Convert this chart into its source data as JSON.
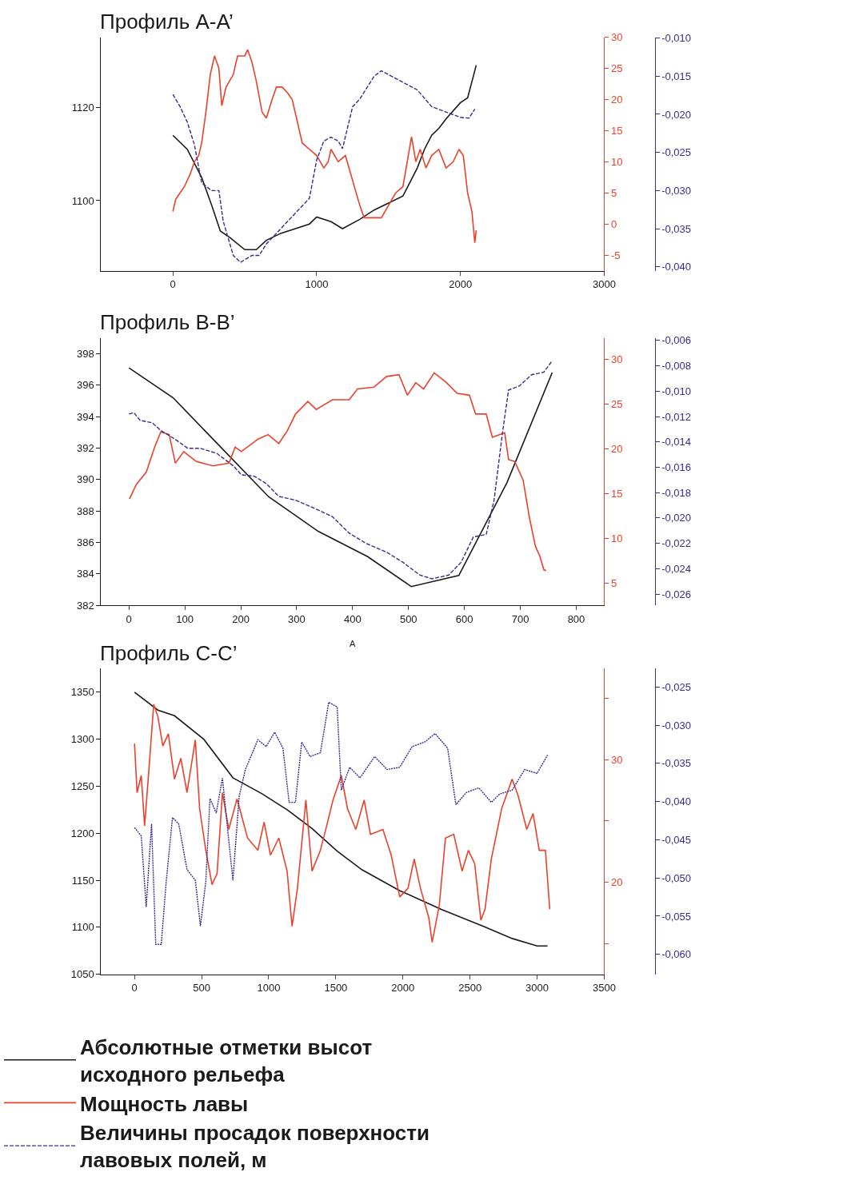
{
  "chart_data": [
    {
      "type": "line",
      "title": "Профиль A-A’",
      "legend": "bottom",
      "xlim": [
        -500,
        3000
      ],
      "xticks": [
        0,
        1000,
        2000,
        3000
      ],
      "ylim": [
        1085,
        1135
      ],
      "yticks": [
        1100,
        1120
      ],
      "y2lim": [
        -7.5,
        30
      ],
      "y2ticks": [
        -5,
        0,
        5,
        10,
        15,
        20,
        25,
        30
      ],
      "y3lim": [
        -0.0405,
        -0.0099
      ],
      "y3ticks": [
        {
          "value": -0.01,
          "label": "-0,010"
        },
        {
          "value": -0.015,
          "label": "-0,015"
        },
        {
          "value": -0.02,
          "label": "-0,020"
        },
        {
          "value": -0.025,
          "label": "-0,025"
        },
        {
          "value": -0.03,
          "label": "-0,030"
        },
        {
          "value": -0.035,
          "label": "-0,035"
        },
        {
          "value": -0.04,
          "label": "-0,040"
        }
      ],
      "series": [
        {
          "name": "Абсолютные отметки высот исходного рельефа",
          "color": "#1a1a1a",
          "line_style": "solid",
          "x": [
            0,
            100,
            200,
            270,
            330,
            400,
            500,
            580,
            650,
            750,
            950,
            1000,
            1100,
            1180,
            1300,
            1400,
            1500,
            1600,
            1700,
            1750,
            1800,
            1850,
            1900,
            2000,
            2050,
            2110
          ],
          "values": [
            1114,
            1111,
            1105,
            1099,
            1093.5,
            1092,
            1089.5,
            1089.5,
            1091.5,
            1093,
            1095,
            1096.5,
            1095.5,
            1094,
            1096,
            1098,
            1099.5,
            1101,
            1107,
            1111,
            1114,
            1115.5,
            1117.5,
            1121,
            1122,
            1129
          ]
        },
        {
          "name": "Мощность лавы",
          "color": "#e8412c",
          "line_style": "solid",
          "axis": "y2",
          "x": [
            0,
            20,
            50,
            80,
            120,
            150,
            180,
            200,
            230,
            260,
            290,
            320,
            340,
            370,
            420,
            450,
            500,
            520,
            550,
            580,
            620,
            650,
            690,
            720,
            760,
            800,
            830,
            870,
            900,
            950,
            1000,
            1050,
            1080,
            1100,
            1150,
            1200,
            1250,
            1300,
            1330,
            1370,
            1400,
            1450,
            1500,
            1550,
            1600,
            1630,
            1660,
            1690,
            1720,
            1760,
            1800,
            1850,
            1900,
            1950,
            1990,
            2020,
            2050,
            2080,
            2100,
            2110
          ],
          "values": [
            2,
            4,
            5,
            6,
            8,
            10,
            11,
            13,
            18,
            24,
            27,
            25,
            19,
            22,
            24,
            27,
            27,
            28,
            26,
            23,
            18,
            17,
            20,
            22,
            22,
            21,
            20,
            16,
            13,
            12,
            11,
            9,
            10,
            12,
            10,
            11,
            7,
            3,
            1,
            1,
            1,
            1,
            3,
            5,
            6,
            10,
            14,
            10,
            12,
            9,
            11,
            12,
            9,
            10,
            12,
            11,
            5,
            2,
            -3,
            -1
          ]
        },
        {
          "name": "Величины просадок поверхности лавовых полей, м",
          "color": "#3d2a8f",
          "line_style": "dashed",
          "axis": "y3",
          "x": [
            0,
            50,
            100,
            150,
            200,
            270,
            320,
            350,
            420,
            470,
            550,
            600,
            650,
            700,
            800,
            900,
            950,
            1000,
            1050,
            1100,
            1150,
            1180,
            1250,
            1300,
            1350,
            1400,
            1450,
            1500,
            1600,
            1700,
            1800,
            1900,
            2000,
            2060,
            2100
          ],
          "values": [
            -0.0174,
            -0.019,
            -0.021,
            -0.024,
            -0.029,
            -0.03,
            -0.03,
            -0.034,
            -0.0385,
            -0.0394,
            -0.0385,
            -0.0385,
            -0.037,
            -0.036,
            -0.034,
            -0.032,
            -0.031,
            -0.026,
            -0.0235,
            -0.023,
            -0.0235,
            -0.0245,
            -0.019,
            -0.018,
            -0.0165,
            -0.015,
            -0.0143,
            -0.0148,
            -0.0158,
            -0.0168,
            -0.019,
            -0.0197,
            -0.0204,
            -0.0205,
            -0.0193
          ]
        }
      ]
    },
    {
      "type": "line",
      "title": "Профиль B-B’",
      "annotations": [
        "A"
      ],
      "xlim": [
        -50,
        850
      ],
      "xticks": [
        0,
        100,
        200,
        300,
        400,
        500,
        600,
        700,
        800
      ],
      "ylim": [
        382,
        399
      ],
      "yticks": [
        382,
        384,
        386,
        388,
        390,
        392,
        394,
        396,
        398
      ],
      "y2lim": [
        2.5,
        32.4
      ],
      "y2ticks": [
        5,
        10,
        15,
        20,
        25,
        30
      ],
      "y3lim": [
        -0.0269,
        -0.0058
      ],
      "y3ticks": [
        {
          "value": -0.006,
          "label": "-0,006"
        },
        {
          "value": -0.008,
          "label": "-0,008"
        },
        {
          "value": -0.01,
          "label": "-0,010"
        },
        {
          "value": -0.012,
          "label": "-0,012"
        },
        {
          "value": -0.014,
          "label": "-0,014"
        },
        {
          "value": -0.016,
          "label": "-0,016"
        },
        {
          "value": -0.018,
          "label": "-0,018"
        },
        {
          "value": -0.02,
          "label": "-0,020"
        },
        {
          "value": -0.022,
          "label": "-0,022"
        },
        {
          "value": -0.024,
          "label": "-0,024"
        },
        {
          "value": -0.026,
          "label": "-0,026"
        }
      ],
      "series": [
        {
          "color": "#1a1a1a",
          "line_style": "solid",
          "x": [
            0,
            79,
            250,
            339,
            427,
            505,
            590,
            676,
            757
          ],
          "values": [
            397.1,
            395.2,
            388.9,
            386.7,
            385.1,
            383.2,
            383.9,
            389.8,
            396.8
          ]
        },
        {
          "color": "#e8412c",
          "line_style": "solid",
          "axis": "y2",
          "x": [
            1,
            13,
            31,
            46,
            57,
            72,
            83,
            98,
            120,
            150,
            179,
            190,
            201,
            231,
            249,
            268,
            283,
            298,
            320,
            335,
            364,
            394,
            409,
            438,
            461,
            483,
            498,
            513,
            527,
            546,
            568,
            587,
            609,
            620,
            639,
            650,
            672,
            679,
            690,
            705,
            716,
            727,
            735,
            742,
            746
          ],
          "values": [
            14.4,
            16,
            17.4,
            20.2,
            21.9,
            21.6,
            18.4,
            19.7,
            18.6,
            18.1,
            18.4,
            20.2,
            19.7,
            21.1,
            21.6,
            20.6,
            22,
            23.9,
            25.3,
            24.4,
            25.5,
            25.5,
            26.7,
            26.9,
            28.1,
            28.3,
            26,
            27.4,
            26.7,
            28.5,
            27.4,
            26.2,
            26,
            23.9,
            23.9,
            21.3,
            21.8,
            18.8,
            18.6,
            16.5,
            12.4,
            9.1,
            8,
            6.5,
            6.4
          ]
        },
        {
          "color": "#3d2a8f",
          "line_style": "dashed",
          "axis": "y3",
          "x": [
            0,
            9,
            20,
            42,
            57,
            83,
            105,
            127,
            157,
            187,
            201,
            224,
            246,
            268,
            298,
            335,
            364,
            394,
            424,
            461,
            490,
            520,
            542,
            572,
            594,
            616,
            639,
            653,
            668,
            679,
            698,
            720,
            742,
            757
          ],
          "values": [
            -0.0118,
            -0.0117,
            -0.0123,
            -0.0125,
            -0.0131,
            -0.0138,
            -0.0145,
            -0.0145,
            -0.0149,
            -0.0159,
            -0.0166,
            -0.0167,
            -0.0173,
            -0.0183,
            -0.0186,
            -0.0193,
            -0.0199,
            -0.0212,
            -0.022,
            -0.0227,
            -0.0235,
            -0.0245,
            -0.0248,
            -0.0245,
            -0.0235,
            -0.0215,
            -0.0213,
            -0.0186,
            -0.0133,
            -0.0099,
            -0.0096,
            -0.0087,
            -0.0085,
            -0.0076
          ]
        }
      ]
    },
    {
      "type": "line",
      "title": "Профиль C-C’",
      "xlim": [
        -250,
        3500
      ],
      "xticks": [
        0,
        500,
        1000,
        1500,
        2000,
        2500,
        3000,
        3500
      ],
      "ylim": [
        1050,
        1375
      ],
      "yticks": [
        1050,
        1100,
        1150,
        1200,
        1250,
        1300,
        1350
      ],
      "y2lim": [
        12.5,
        37.4
      ],
      "y2ticks": [
        {
          "value": 15,
          "label": null
        },
        20,
        {
          "value": 25,
          "label": null
        },
        30,
        {
          "value": 35,
          "label": null
        }
      ],
      "y3lim": [
        -0.0626,
        -0.0226
      ],
      "y3ticks": [
        {
          "value": -0.025,
          "label": "-0,025"
        },
        {
          "value": -0.03,
          "label": "-0,030"
        },
        {
          "value": -0.035,
          "label": "-0,035"
        },
        {
          "value": -0.04,
          "label": "-0,040"
        },
        {
          "value": -0.045,
          "label": "-0,045"
        },
        {
          "value": -0.05,
          "label": "-0,050"
        },
        {
          "value": -0.055,
          "label": "-0,055"
        },
        {
          "value": -0.06,
          "label": "-0,060"
        }
      ],
      "series": [
        {
          "color": "#1a1a1a",
          "line_style": "solid",
          "x": [
            0,
            174,
            298,
            516,
            733,
            950,
            1137,
            1323,
            1510,
            1696,
            1975,
            2286,
            2597,
            2814,
            3000,
            3078
          ],
          "values": [
            1350,
            1331,
            1325,
            1300,
            1259,
            1242,
            1225,
            1205,
            1181,
            1161,
            1139,
            1119,
            1101,
            1088,
            1080,
            1080
          ]
        },
        {
          "color": "#e8412c",
          "line_style": "solid",
          "axis": "y2",
          "x": [
            0,
            19,
            50,
            75,
            106,
            143,
            174,
            211,
            252,
            298,
            345,
            391,
            453,
            485,
            531,
            578,
            615,
            655,
            702,
            764,
            842,
            919,
            966,
            1013,
            1075,
            1137,
            1174,
            1214,
            1277,
            1323,
            1385,
            1432,
            1479,
            1541,
            1587,
            1649,
            1711,
            1758,
            1851,
            1913,
            1976,
            2038,
            2084,
            2131,
            2193,
            2218,
            2271,
            2317,
            2379,
            2441,
            2488,
            2535,
            2581,
            2612,
            2659,
            2736,
            2814,
            2860,
            2923,
            2970,
            3016,
            3062,
            3094
          ],
          "values": [
            31.3,
            27.3,
            28.7,
            24.6,
            29,
            34.5,
            33.5,
            31.1,
            32.1,
            28.4,
            30.1,
            27.3,
            31.6,
            26,
            22.6,
            19.8,
            20.7,
            27.3,
            24.3,
            26.8,
            23.6,
            22.6,
            24.9,
            22.2,
            23.6,
            20.9,
            16.4,
            19.5,
            26.7,
            20.9,
            22.6,
            24.6,
            26.7,
            28.7,
            26,
            24.3,
            26.7,
            23.9,
            24.3,
            22.2,
            18.8,
            19.5,
            21.9,
            19.5,
            17.1,
            15.1,
            18.1,
            23.6,
            23.9,
            20.9,
            22.6,
            21.5,
            16.9,
            17.8,
            21.9,
            26,
            28.4,
            27,
            24.3,
            25.6,
            22.6,
            22.6,
            17.8
          ]
        },
        {
          "color": "#3d2a8f",
          "line_style": "dotted",
          "axis": "y3",
          "x": [
            0,
            50,
            87,
            127,
            158,
            199,
            236,
            283,
            329,
            391,
            453,
            491,
            531,
            562,
            609,
            655,
            686,
            733,
            780,
            826,
            919,
            981,
            1044,
            1106,
            1152,
            1199,
            1246,
            1308,
            1385,
            1447,
            1510,
            1541,
            1603,
            1680,
            1789,
            1882,
            1976,
            2069,
            2162,
            2240,
            2333,
            2395,
            2473,
            2566,
            2659,
            2721,
            2814,
            2907,
            3000,
            3078
          ],
          "values": [
            -0.0434,
            -0.0445,
            -0.0538,
            -0.0429,
            -0.0587,
            -0.0587,
            -0.0505,
            -0.0421,
            -0.0429,
            -0.0489,
            -0.0503,
            -0.0563,
            -0.0505,
            -0.0396,
            -0.0415,
            -0.0369,
            -0.0423,
            -0.0503,
            -0.0393,
            -0.0358,
            -0.0319,
            -0.0328,
            -0.0309,
            -0.033,
            -0.0401,
            -0.0401,
            -0.0322,
            -0.0341,
            -0.0336,
            -0.027,
            -0.0276,
            -0.0385,
            -0.0355,
            -0.0369,
            -0.0341,
            -0.0358,
            -0.0355,
            -0.0328,
            -0.0322,
            -0.0311,
            -0.033,
            -0.0404,
            -0.0388,
            -0.0382,
            -0.0401,
            -0.039,
            -0.0385,
            -0.0358,
            -0.0363,
            -0.0339
          ]
        }
      ]
    }
  ]
}
